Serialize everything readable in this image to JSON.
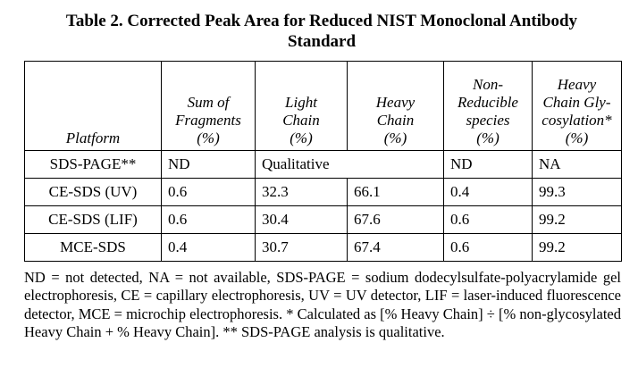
{
  "table": {
    "title_line1": "Table 2.  Corrected Peak Area for Reduced NIST Monoclonal Antibody",
    "title_line2": "Standard",
    "headers": [
      {
        "lines": [
          "Platform"
        ]
      },
      {
        "lines": [
          "Sum of",
          "Fragments",
          "(%)"
        ]
      },
      {
        "lines": [
          "Light",
          "Chain",
          "(%)"
        ]
      },
      {
        "lines": [
          "Heavy",
          "Chain",
          "(%)"
        ]
      },
      {
        "lines": [
          "Non-",
          "Reducible",
          "species",
          "(%)"
        ]
      },
      {
        "lines": [
          "Heavy",
          "Chain Gly-",
          "cosylation*",
          "(%)"
        ]
      }
    ],
    "rows": [
      {
        "platform": "SDS-PAGE**",
        "fragments": "ND",
        "light": "Qualitative",
        "heavy": "",
        "nonreducible": "ND",
        "glyco": "NA"
      },
      {
        "platform": "CE-SDS (UV)",
        "fragments": "0.6",
        "light": "32.3",
        "heavy": "66.1",
        "nonreducible": "0.4",
        "glyco": "99.3"
      },
      {
        "platform": "CE-SDS (LIF)",
        "fragments": "0.6",
        "light": "30.4",
        "heavy": "67.6",
        "nonreducible": "0.6",
        "glyco": "99.2"
      },
      {
        "platform": "MCE-SDS",
        "fragments": "0.4",
        "light": "30.7",
        "heavy": "67.4",
        "nonreducible": "0.6",
        "glyco": "99.2"
      }
    ],
    "footnote": "ND = not detected, NA = not available, SDS-PAGE = sodium dodecylsulfate-polyacrylamide gel electrophoresis, CE = capillary electrophoresis, UV = UV detector, LIF = laser-induced fluorescence detector, MCE = microchip electrophoresis.   * Calculated as [% Heavy Chain] ÷ [% non-glycosylated Heavy Chain + % Heavy Chain].   ** SDS-PAGE analysis is qualitative."
  }
}
